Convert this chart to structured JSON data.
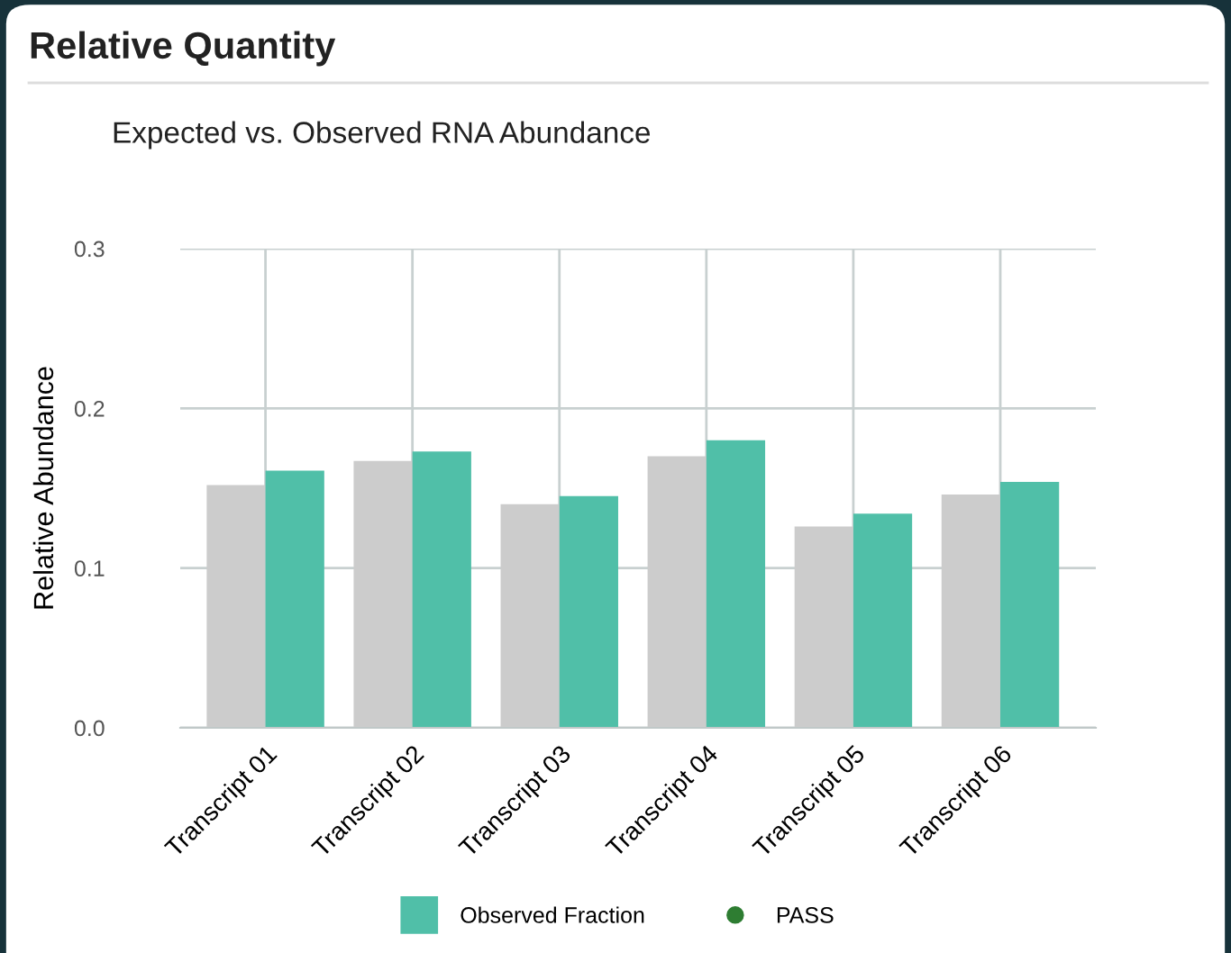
{
  "chart_data": {
    "type": "bar",
    "title": "Relative Quantity",
    "subtitle": "Expected vs. Observed RNA Abundance",
    "ylabel": "Relative Abundance",
    "categories": [
      "Transcript 01",
      "Transcript 02",
      "Transcript 03",
      "Transcript 04",
      "Transcript 05",
      "Transcript 06"
    ],
    "series": [
      {
        "color": "#cccccc",
        "values": [
          0.152,
          0.167,
          0.14,
          0.17,
          0.126,
          0.146
        ]
      },
      {
        "name": "Observed Fraction",
        "color": "#50bfa8",
        "values": [
          0.161,
          0.173,
          0.145,
          0.18,
          0.134,
          0.154
        ]
      },
      {
        "name": "PASS",
        "type": "scatter",
        "color": "#2e7d32",
        "values": [
          null,
          null,
          null,
          null,
          null,
          null
        ]
      }
    ],
    "ylim": [
      0,
      0.3
    ],
    "yticks": [
      {
        "value": 0,
        "label": "0.0"
      },
      0.1,
      0.2,
      0.3
    ],
    "grid": true,
    "legend": "bottom"
  }
}
